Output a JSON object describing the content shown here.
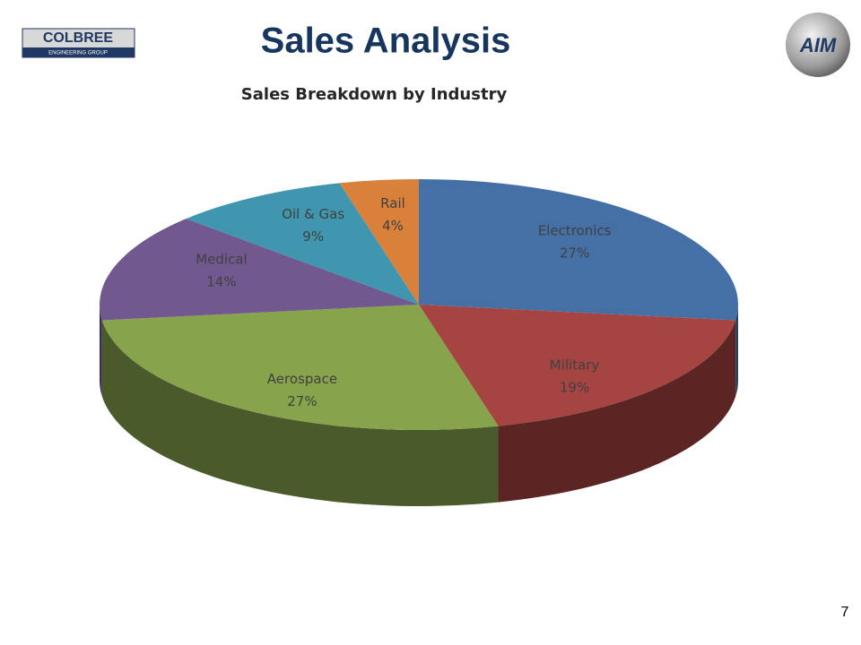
{
  "header": {
    "logo_left": [
      "COLBREE",
      "ENGINEERING GROUP"
    ],
    "logo_right": "AIM",
    "title": "Sales Analysis"
  },
  "chart_data": {
    "type": "pie",
    "title": "Sales Breakdown by Industry",
    "categories": [
      "Electronics",
      "Military",
      "Aerospace",
      "Medical",
      "Oil & Gas",
      "Rail"
    ],
    "values": [
      27,
      19,
      27,
      14,
      9,
      4
    ],
    "value_labels": [
      "27%",
      "19%",
      "27%",
      "14%",
      "9%",
      "4%"
    ],
    "colors": [
      "#4570a6",
      "#a64442",
      "#87a44c",
      "#71588f",
      "#3f96ae",
      "#d9803b"
    ]
  },
  "page_number": "7"
}
